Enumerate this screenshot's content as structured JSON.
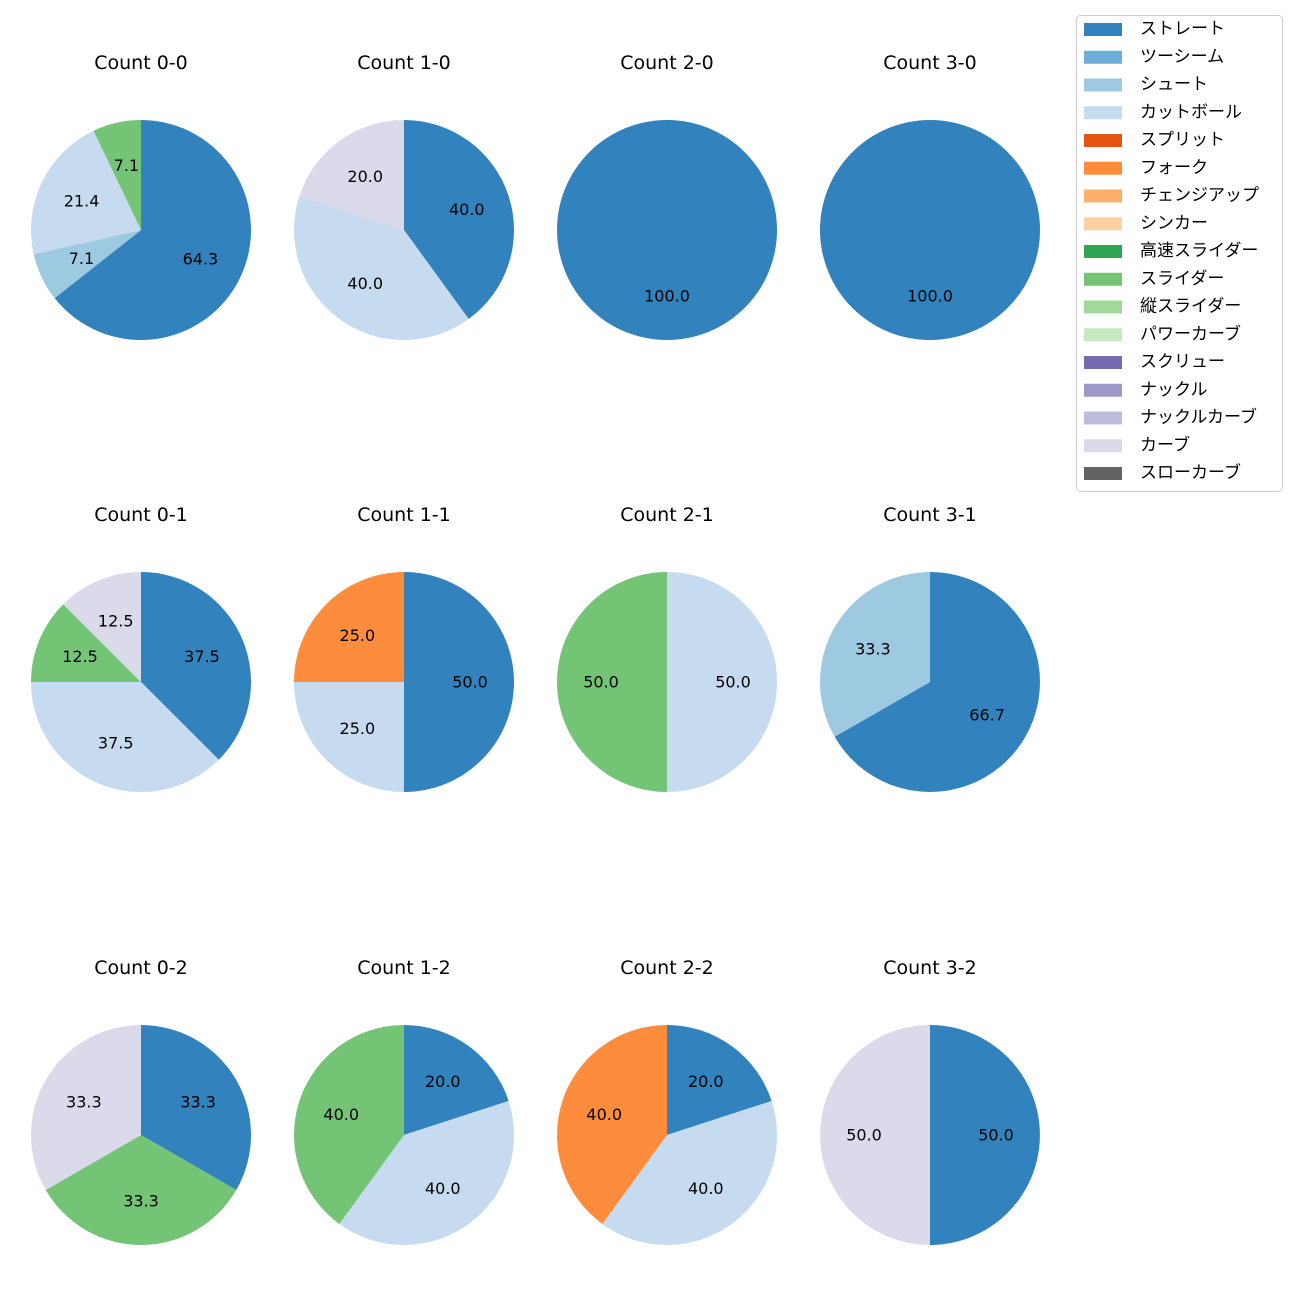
{
  "colors": {
    "ストレート": "#3182bd",
    "ツーシーム": "#6baed6",
    "シュート": "#9ecae1",
    "カットボール": "#c6dbef",
    "スプリット": "#e6550d",
    "フォーク": "#fd8d3c",
    "チェンジアップ": "#fdae6b",
    "シンカー": "#fdd0a2",
    "高速スライダー": "#31a354",
    "スライダー": "#74c476",
    "縦スライダー": "#a1d99b",
    "パワーカーブ": "#c7e9c0",
    "スクリュー": "#756bb1",
    "ナックル": "#9e9ac8",
    "ナックルカーブ": "#bcbddc",
    "カーブ": "#dadaeb",
    "スローカーブ": "#636363"
  },
  "legend": {
    "placement": "top-right",
    "items": [
      "ストレート",
      "ツーシーム",
      "シュート",
      "カットボール",
      "スプリット",
      "フォーク",
      "チェンジアップ",
      "シンカー",
      "高速スライダー",
      "スライダー",
      "縦スライダー",
      "パワーカーブ",
      "スクリュー",
      "ナックル",
      "ナックルカーブ",
      "カーブ",
      "スローカーブ"
    ]
  },
  "chart_data": [
    {
      "type": "pie",
      "title": "Count 0-0",
      "slices": [
        {
          "category": "ストレート",
          "value": 64.3
        },
        {
          "category": "シュート",
          "value": 7.1
        },
        {
          "category": "カットボール",
          "value": 21.4
        },
        {
          "category": "スライダー",
          "value": 7.1
        }
      ]
    },
    {
      "type": "pie",
      "title": "Count 1-0",
      "slices": [
        {
          "category": "ストレート",
          "value": 40.0
        },
        {
          "category": "カットボール",
          "value": 40.0
        },
        {
          "category": "カーブ",
          "value": 20.0
        }
      ]
    },
    {
      "type": "pie",
      "title": "Count 2-0",
      "slices": [
        {
          "category": "ストレート",
          "value": 100.0
        }
      ]
    },
    {
      "type": "pie",
      "title": "Count 3-0",
      "slices": [
        {
          "category": "ストレート",
          "value": 100.0
        }
      ]
    },
    {
      "type": "pie",
      "title": "Count 0-1",
      "slices": [
        {
          "category": "ストレート",
          "value": 37.5
        },
        {
          "category": "カットボール",
          "value": 37.5
        },
        {
          "category": "スライダー",
          "value": 12.5
        },
        {
          "category": "カーブ",
          "value": 12.5
        }
      ]
    },
    {
      "type": "pie",
      "title": "Count 1-1",
      "slices": [
        {
          "category": "ストレート",
          "value": 50.0
        },
        {
          "category": "カットボール",
          "value": 25.0
        },
        {
          "category": "フォーク",
          "value": 25.0
        }
      ]
    },
    {
      "type": "pie",
      "title": "Count 2-1",
      "slices": [
        {
          "category": "カットボール",
          "value": 50.0
        },
        {
          "category": "スライダー",
          "value": 50.0
        }
      ]
    },
    {
      "type": "pie",
      "title": "Count 3-1",
      "slices": [
        {
          "category": "ストレート",
          "value": 66.7
        },
        {
          "category": "シュート",
          "value": 33.3
        }
      ]
    },
    {
      "type": "pie",
      "title": "Count 0-2",
      "slices": [
        {
          "category": "ストレート",
          "value": 33.3
        },
        {
          "category": "スライダー",
          "value": 33.3
        },
        {
          "category": "カーブ",
          "value": 33.3
        }
      ]
    },
    {
      "type": "pie",
      "title": "Count 1-2",
      "slices": [
        {
          "category": "ストレート",
          "value": 20.0
        },
        {
          "category": "カットボール",
          "value": 40.0
        },
        {
          "category": "スライダー",
          "value": 40.0
        }
      ]
    },
    {
      "type": "pie",
      "title": "Count 2-2",
      "slices": [
        {
          "category": "ストレート",
          "value": 20.0
        },
        {
          "category": "カットボール",
          "value": 40.0
        },
        {
          "category": "フォーク",
          "value": 40.0
        }
      ]
    },
    {
      "type": "pie",
      "title": "Count 3-2",
      "slices": [
        {
          "category": "ストレート",
          "value": 50.0
        },
        {
          "category": "カーブ",
          "value": 50.0
        }
      ]
    }
  ]
}
